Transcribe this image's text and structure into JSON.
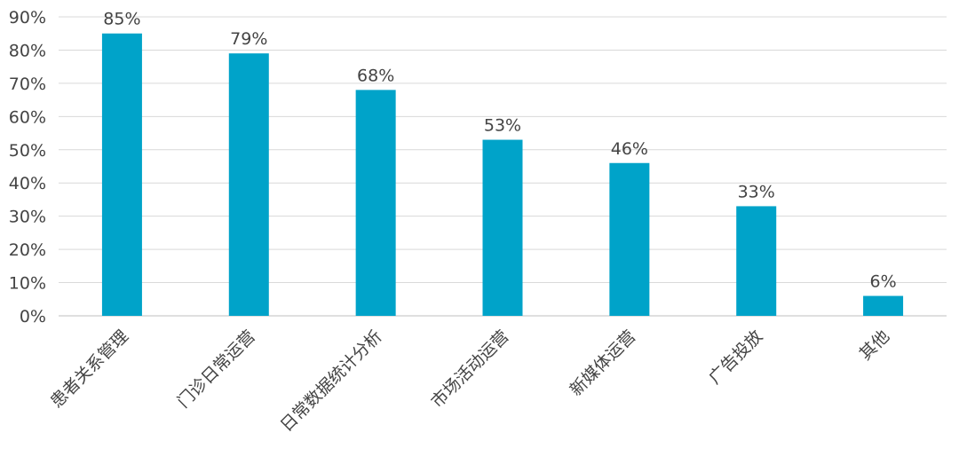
{
  "chart_data": {
    "type": "bar",
    "categories": [
      "患者关系管理",
      "门诊日常运营",
      "日常数据统计分析",
      "市场活动运营",
      "新媒体运营",
      "广告投放",
      "其他"
    ],
    "values": [
      85,
      79,
      68,
      53,
      46,
      33,
      6
    ],
    "value_labels": [
      "85%",
      "79%",
      "68%",
      "53%",
      "46%",
      "33%",
      "6%"
    ],
    "y_ticks": [
      0,
      10,
      20,
      30,
      40,
      50,
      60,
      70,
      80,
      90
    ],
    "y_tick_labels": [
      "0%",
      "10%",
      "20%",
      "30%",
      "40%",
      "50%",
      "60%",
      "70%",
      "80%",
      "90%"
    ],
    "ylim": [
      0,
      90
    ],
    "grid": true,
    "legend": "none",
    "bar_color": "#00a3c9",
    "title": "",
    "xlabel": "",
    "ylabel": ""
  }
}
